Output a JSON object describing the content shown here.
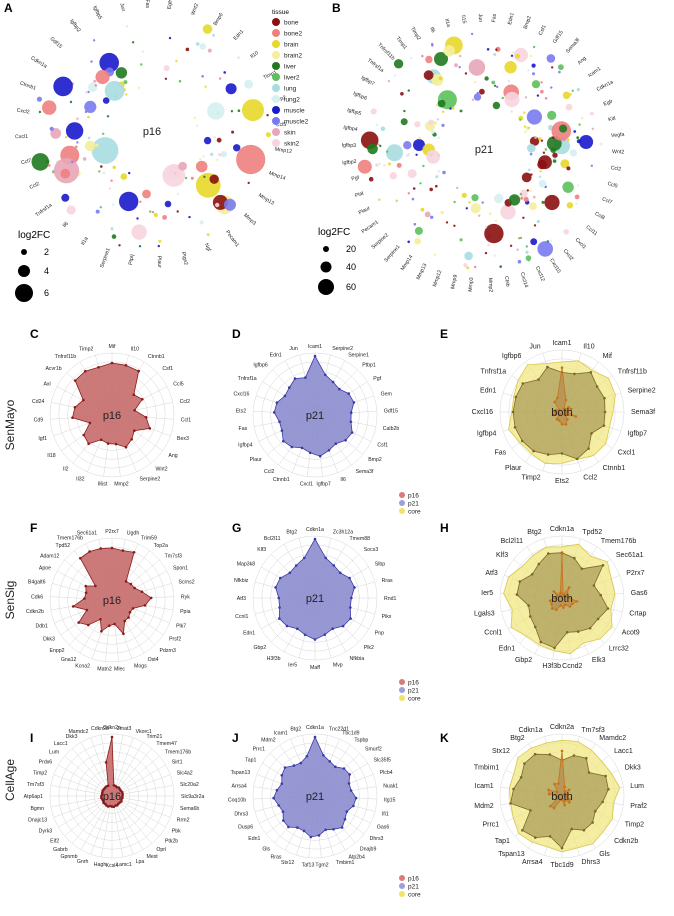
{
  "figure": {
    "panels": {
      "A": {
        "letter": "A",
        "center": "p16",
        "size_legend": {
          "title": "log2FC",
          "values": [
            "2",
            "4",
            "6"
          ]
        },
        "tissue_legend": {
          "title": "tissue",
          "items": [
            {
              "name": "bone",
              "color": "#8b1010"
            },
            {
              "name": "bone2",
              "color": "#f08080"
            },
            {
              "name": "brain",
              "color": "#e8d82a"
            },
            {
              "name": "brain2",
              "color": "#f5ee9a"
            },
            {
              "name": "liver",
              "color": "#1f7a1f"
            },
            {
              "name": "liver2",
              "color": "#5cc05c"
            },
            {
              "name": "lung",
              "color": "#a7dde0"
            },
            {
              "name": "lung2",
              "color": "#d6f0f1"
            },
            {
              "name": "muscle",
              "color": "#1a1acb"
            },
            {
              "name": "muscle2",
              "color": "#7a7af0"
            },
            {
              "name": "skin",
              "color": "#e8a6b8"
            },
            {
              "name": "skin2",
              "color": "#f7d5df"
            }
          ]
        },
        "genes": [
          "Mmp12",
          "Mmp14",
          "Mmp13",
          "Mmp3",
          "Pecam1",
          "Ngf",
          "Ptgs2",
          "Plaur",
          "Ptprj",
          "Serpine1",
          "Il1a",
          "Il6",
          "Tnfrsf1a",
          "Ccl2",
          "Ccl7",
          "Cxcl1",
          "Cxcl2",
          "Ctnnb1",
          "Cdkn1a",
          "Gdf15",
          "Igfbp2",
          "Igfbp5",
          "Jun",
          "Fas",
          "Egfr",
          "Wnt2",
          "Bmp6",
          "Edn1",
          "Il10",
          "Timp1",
          "Timp2",
          "Ccl5"
        ]
      },
      "B": {
        "letter": "B",
        "center": "p21",
        "size_legend": {
          "title": "log2FC",
          "values": [
            "20",
            "40",
            "60"
          ]
        },
        "genes": [
          "Ccl2",
          "Ccl5",
          "Ccl7",
          "Ccl8",
          "Ccl11",
          "Cxcl1",
          "Cxcl2",
          "Cxcl10",
          "Cxcl12",
          "Cxcl14",
          "Ctsb",
          "Mmp2",
          "Mmp3",
          "Mmp9",
          "Mmp12",
          "Mmp13",
          "Mmp14",
          "Serpine1",
          "Serpine2",
          "Pecam1",
          "Plaur",
          "Plat",
          "Pgf",
          "Igfbp2",
          "Igfbp3",
          "Igfbp4",
          "Igfbp5",
          "Igfbp6",
          "Igfbp7",
          "Tnfrsf1a",
          "Tnfrsf11b",
          "Timp1",
          "Timp2",
          "Il6",
          "Il1a",
          "Il15",
          "Jun",
          "Fas",
          "Edn1",
          "Bmp2",
          "Csf1",
          "Gdf15",
          "Sema3f",
          "Ang",
          "Icam1",
          "Cdkn1a",
          "Egfr",
          "Kitl",
          "Vegfa",
          "Wnt2"
        ]
      },
      "C": {
        "letter": "C",
        "center": "p16",
        "row": "SenMayo",
        "kind": "p16",
        "labels": [
          "Mif",
          "Il10",
          "Ctnnb1",
          "Csf1",
          "Ccl5",
          "Ccl2",
          "Ccl1",
          "Bex3",
          "Ang",
          "Wnt2",
          "Serpine2",
          "Mmp2",
          "Il6st",
          "Il32",
          "Il2",
          "Il18",
          "Igf1",
          "Cd9",
          "Cd24",
          "Axl",
          "Acvr1b",
          "Tnfrsf11b",
          "Timp2"
        ]
      },
      "D": {
        "letter": "D",
        "center": "p21",
        "kind": "p21",
        "labels": [
          "Icam1",
          "Serpine2",
          "Serpine1",
          "Ptbp1",
          "Pgf",
          "Gem",
          "Gdf15",
          "Calb2b",
          "Csf1",
          "Bmp2",
          "Sema3f",
          "Il6",
          "Igfbp7",
          "Cxcl1",
          "Ctnnb1",
          "Ccl2",
          "Plaur",
          "Igfbp4",
          "Fas",
          "Ets2",
          "Cxcl16",
          "Tnfrsf1a",
          "Igfbp6",
          "Edn1",
          "Jun"
        ]
      },
      "E": {
        "letter": "E",
        "center": "both",
        "kind": "both",
        "labels": [
          "Icam1",
          "Il10",
          "Mif",
          "Tnfrsf11b",
          "Serpine2",
          "Sema3f",
          "Igfbp7",
          "Cxcl1",
          "Ctnnb1",
          "Ccl2",
          "Ets2",
          "Timp2",
          "Plaur",
          "Fas",
          "Igfbp4",
          "Cxcl16",
          "Edn1",
          "Tnfrsf1a",
          "Igfbp6",
          "Jun"
        ]
      },
      "F": {
        "letter": "F",
        "center": "p16",
        "row": "SenSig",
        "kind": "p16",
        "labels": [
          "P2rx7",
          "Ugdh",
          "Trim59",
          "Top2a",
          "Tm7sf3",
          "Spon1",
          "Scrns2",
          "Ryk",
          "Ppia",
          "Plk7",
          "Prsf2",
          "Pdzrn3",
          "Ost4",
          "Mogs",
          "Mlec",
          "Matn2",
          "Kcna2",
          "Gna12",
          "Enpp2",
          "Dkk3",
          "Ddb1",
          "Cdkn2b",
          "Cdk6",
          "B4galt6",
          "Apoe",
          "Adam12",
          "Tpd52",
          "Tmem176b",
          "Sec61a1"
        ]
      },
      "G": {
        "letter": "G",
        "center": "p21",
        "kind": "p21",
        "labels": [
          "Cdkn1a",
          "Zc3h12a",
          "Tmem88",
          "Socs3",
          "Slbp",
          "Rras",
          "Rnd1",
          "Pikx",
          "Pnp",
          "Plk2",
          "Nfkbia",
          "Mvp",
          "Maff",
          "Ier5",
          "H3f3b",
          "Gbp2",
          "Edn1",
          "Ccnl1",
          "Atf3",
          "Nfkbiz",
          "Map3k8",
          "Klf3",
          "Bcl2l11",
          "Btg2"
        ]
      },
      "H": {
        "letter": "H",
        "center": "both",
        "kind": "both",
        "labels": [
          "Cdkn1a",
          "Tpd52",
          "Tmem176b",
          "Sec61a1",
          "P2rx7",
          "Gas6",
          "Crtap",
          "Acot9",
          "Lrrc32",
          "Elk3",
          "Ccnd2",
          "H3f3b",
          "Gbp2",
          "Edn1",
          "Ccnl1",
          "Lgals3",
          "Ier5",
          "Atf3",
          "Klf3",
          "Bcl2l11",
          "Btg2"
        ]
      },
      "I": {
        "letter": "I",
        "center": "p16",
        "row": "CellAge",
        "kind": "p16sharp",
        "labels": [
          "Cdkn2a",
          "Zmat3",
          "Vkorc1",
          "Trim21",
          "Tmem47",
          "Tmem176b",
          "Sirt1",
          "Slc4a2",
          "Slc20a2",
          "Slc9a3r2a",
          "Sema6b",
          "Rrm2",
          "Pbk",
          "Ptk2b",
          "Oprl",
          "Mest",
          "Lpa",
          "Lamc1",
          "Kcsl4",
          "Hagh",
          "Gnrh",
          "Gpnmb",
          "Gabrb",
          "Eif2",
          "Dyrk3",
          "Dnajc13",
          "Bgmn",
          "Atp6ap1",
          "Tm7sf3",
          "Timp2",
          "Prdx6",
          "Lum",
          "Lacc1",
          "Dkk3",
          "Mamdc2",
          "Cdkn2b"
        ]
      },
      "J": {
        "letter": "J",
        "center": "p21",
        "kind": "p21",
        "labels": [
          "Cdkn1a",
          "Tnc22d1",
          "Tbc1d9",
          "Tspbp",
          "Smurf2",
          "Slc35f5",
          "Plcb4",
          "Nuak1",
          "Itg15",
          "Ifi1",
          "Gas6",
          "Dhrs3",
          "Dnajb9",
          "Atp2b4",
          "Tmbim1",
          "Tgm2",
          "Taf13",
          "Stx12",
          "Rras",
          "Gls",
          "Edn1",
          "Dusp6",
          "Dhrs3",
          "Coq10b",
          "Arrsa4",
          "Tspan13",
          "Tap1",
          "Prrc1",
          "Mdm2",
          "Icam1",
          "Btg2"
        ]
      },
      "K": {
        "letter": "K",
        "center": "both",
        "kind": "both",
        "labels": [
          "Cdkn2a",
          "Tm7sf3",
          "Mamdc2",
          "Lacc1",
          "Dkk3",
          "Lum",
          "Praf2",
          "Timp2",
          "Cdkn2b",
          "Gls",
          "Dhrs3",
          "Tbc1d9",
          "Arrsa4",
          "Tspan13",
          "Tap1",
          "Prrc1",
          "Mdm2",
          "Icam1",
          "Tmbim1",
          "Stx12",
          "Btg2",
          "Cdkn1a"
        ]
      }
    },
    "legend_small": [
      {
        "name": "p16",
        "color": "#d97b7b"
      },
      {
        "name": "p21",
        "color": "#9e9ed8"
      },
      {
        "name": "core",
        "color": "#f0e36a"
      }
    ],
    "colors": {
      "p16_fill": "#c76a6a",
      "p16_line": "#8b1a1a",
      "p21_fill": "#8c8ccf",
      "p21_line": "#3a3aa8",
      "core_fill": "#efe67a",
      "both_fill": "#b89050",
      "both_line": "#c8731a"
    }
  }
}
